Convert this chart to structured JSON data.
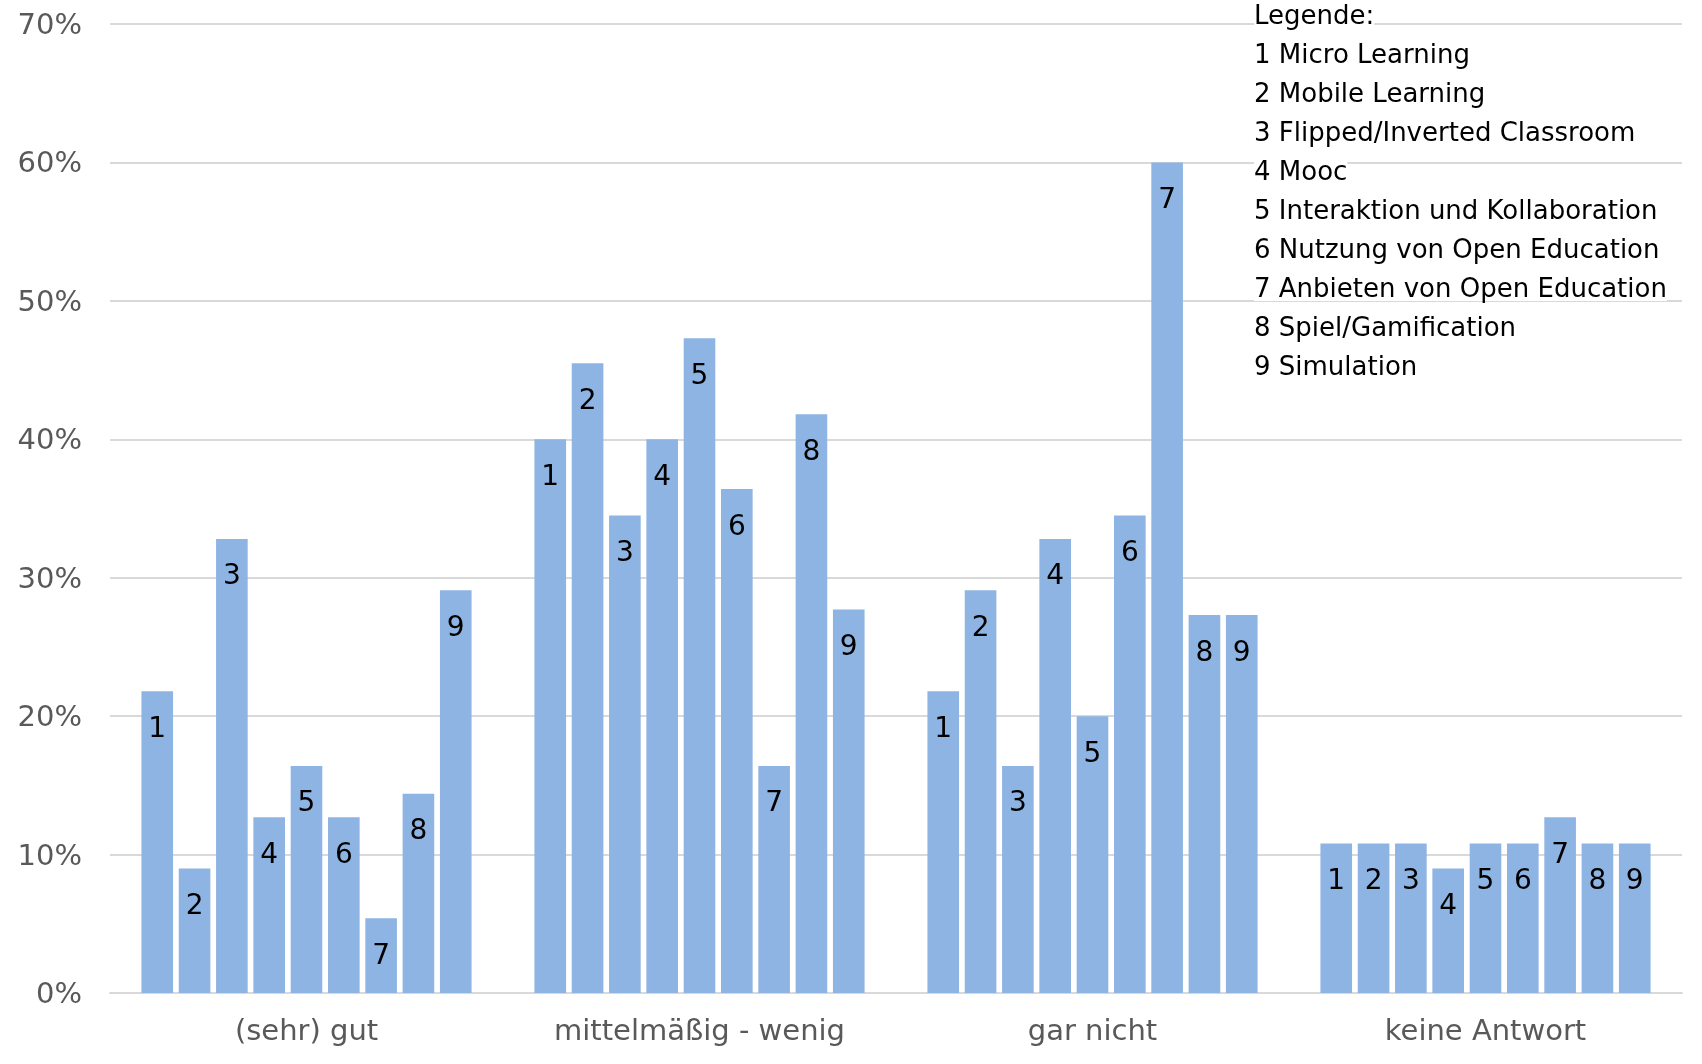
{
  "chart_data": {
    "type": "bar",
    "categories": [
      "(sehr) gut",
      "mittelmäßig - wenig",
      "gar nicht",
      "keine Antwort"
    ],
    "series": [
      {
        "name": "1",
        "color": "#8db4e2",
        "values": [
          21.8,
          40.0,
          21.8,
          10.8
        ]
      },
      {
        "name": "2",
        "color": "#8db4e2",
        "values": [
          9.0,
          45.5,
          29.1,
          10.8
        ]
      },
      {
        "name": "3",
        "color": "#8db4e2",
        "values": [
          32.8,
          34.5,
          16.4,
          10.8
        ]
      },
      {
        "name": "4",
        "color": "#8db4e2",
        "values": [
          12.7,
          40.0,
          32.8,
          9.0
        ]
      },
      {
        "name": "5",
        "color": "#8db4e2",
        "values": [
          16.4,
          47.3,
          20.0,
          10.8
        ]
      },
      {
        "name": "6",
        "color": "#8db4e2",
        "values": [
          12.7,
          36.4,
          34.5,
          10.8
        ]
      },
      {
        "name": "7",
        "color": "#8db4e2",
        "values": [
          5.4,
          16.4,
          60.0,
          12.7
        ]
      },
      {
        "name": "8",
        "color": "#8db4e2",
        "values": [
          14.4,
          41.8,
          27.3,
          10.8
        ]
      },
      {
        "name": "9",
        "color": "#8db4e2",
        "values": [
          29.1,
          27.7,
          27.3,
          10.8
        ]
      }
    ],
    "ylim": [
      0,
      70
    ],
    "yticks": [
      {
        "value": 0,
        "label": "0%"
      },
      {
        "value": 10,
        "label": "10%"
      },
      {
        "value": 20,
        "label": "20%"
      },
      {
        "value": 30,
        "label": "30%"
      },
      {
        "value": 40,
        "label": "40%"
      },
      {
        "value": 50,
        "label": "50%"
      },
      {
        "value": 60,
        "label": "60%"
      },
      {
        "value": 70,
        "label": "70%"
      }
    ],
    "grid": "y",
    "legend": false,
    "annotations": [
      "Legende:",
      "1 Micro Learning",
      "2 Mobile Learning",
      "3 Flipped/Inverted Classroom",
      "4 Mooc",
      "5 Interaktion und Kollaboration",
      "6 Nutzung von Open Education",
      "7 Anbieten von Open Education",
      "8 Spiel/Gamification",
      "9 Simulation"
    ]
  }
}
